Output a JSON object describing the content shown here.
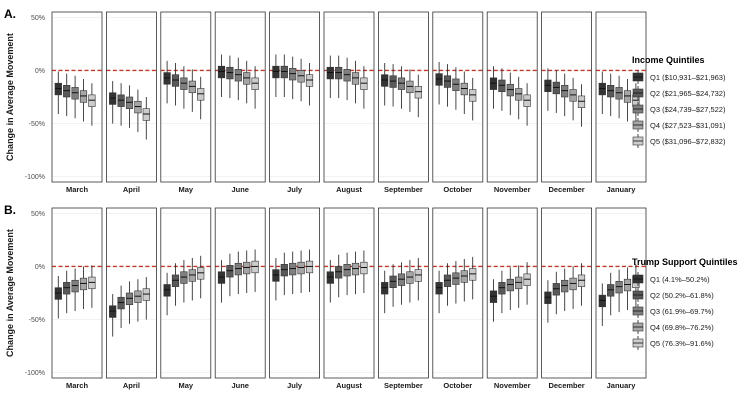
{
  "chart_data": [
    {
      "type": "box",
      "panel_label": "A.",
      "ylabel": "Change in Average Movement",
      "yticks": [
        "50%",
        "0%",
        "-50%",
        "-100%"
      ],
      "ylim": [
        -105,
        55
      ],
      "reference_line": 0,
      "facets": [
        "March",
        "April",
        "May",
        "June",
        "July",
        "August",
        "September",
        "October",
        "November",
        "December",
        "January"
      ],
      "legend_title": "Income Quintiles",
      "legend_position": "right",
      "series": [
        {
          "name": "Q1 ($10,931–$21,963)",
          "color": "#333333"
        },
        {
          "name": "Q2 ($21,965–$24,732)",
          "color": "#595959"
        },
        {
          "name": "Q3 ($24,739–$27,522)",
          "color": "#7f7f7f"
        },
        {
          "name": "Q4 ($27,523–$31,091)",
          "color": "#a6a6a6"
        },
        {
          "name": "Q5 ($31,096–$72,832)",
          "color": "#cccccc"
        }
      ],
      "medians": [
        [
          -17,
          -19,
          -21,
          -24,
          -28
        ],
        [
          -26,
          -28,
          -30,
          -34,
          -41
        ],
        [
          -7,
          -9,
          -12,
          -15,
          -22
        ],
        [
          -1,
          -2,
          -4,
          -7,
          -12
        ],
        [
          -1,
          -1,
          -3,
          -5,
          -9
        ],
        [
          -2,
          -2,
          -4,
          -7,
          -12
        ],
        [
          -9,
          -10,
          -12,
          -15,
          -20
        ],
        [
          -8,
          -10,
          -13,
          -17,
          -23
        ],
        [
          -12,
          -14,
          -18,
          -22,
          -28
        ],
        [
          -14,
          -16,
          -19,
          -23,
          -29
        ],
        [
          -17,
          -19,
          -21,
          -24,
          -28
        ]
      ]
    },
    {
      "type": "box",
      "panel_label": "B.",
      "ylabel": "Change in Average Movement",
      "yticks": [
        "50%",
        "0%",
        "-50%",
        "-100%"
      ],
      "ylim": [
        -105,
        55
      ],
      "reference_line": 0,
      "facets": [
        "March",
        "April",
        "May",
        "June",
        "July",
        "August",
        "September",
        "October",
        "November",
        "December",
        "January"
      ],
      "legend_title": "Trump Support Quintiles",
      "legend_position": "right",
      "series": [
        {
          "name": "Q1 (4.1%–50.2%)",
          "color": "#333333"
        },
        {
          "name": "Q2 (50.2%–61.8%)",
          "color": "#595959"
        },
        {
          "name": "Q3 (61.9%–69.7%)",
          "color": "#7f7f7f"
        },
        {
          "name": "Q4 (69.8%–76.2%)",
          "color": "#a6a6a6"
        },
        {
          "name": "Q5 (76.3%–91.6%)",
          "color": "#cccccc"
        }
      ],
      "medians": [
        [
          -25,
          -20,
          -18,
          -16,
          -15
        ],
        [
          -42,
          -34,
          -30,
          -28,
          -26
        ],
        [
          -22,
          -13,
          -10,
          -8,
          -6
        ],
        [
          -10,
          -4,
          -2,
          -1,
          0
        ],
        [
          -8,
          -3,
          -2,
          -1,
          0
        ],
        [
          -10,
          -5,
          -3,
          -2,
          -1
        ],
        [
          -20,
          -14,
          -12,
          -10,
          -8
        ],
        [
          -20,
          -13,
          -11,
          -9,
          -7
        ],
        [
          -28,
          -20,
          -17,
          -15,
          -12
        ],
        [
          -29,
          -21,
          -18,
          -16,
          -13
        ],
        [
          -32,
          -22,
          -19,
          -17,
          -14
        ]
      ]
    }
  ]
}
